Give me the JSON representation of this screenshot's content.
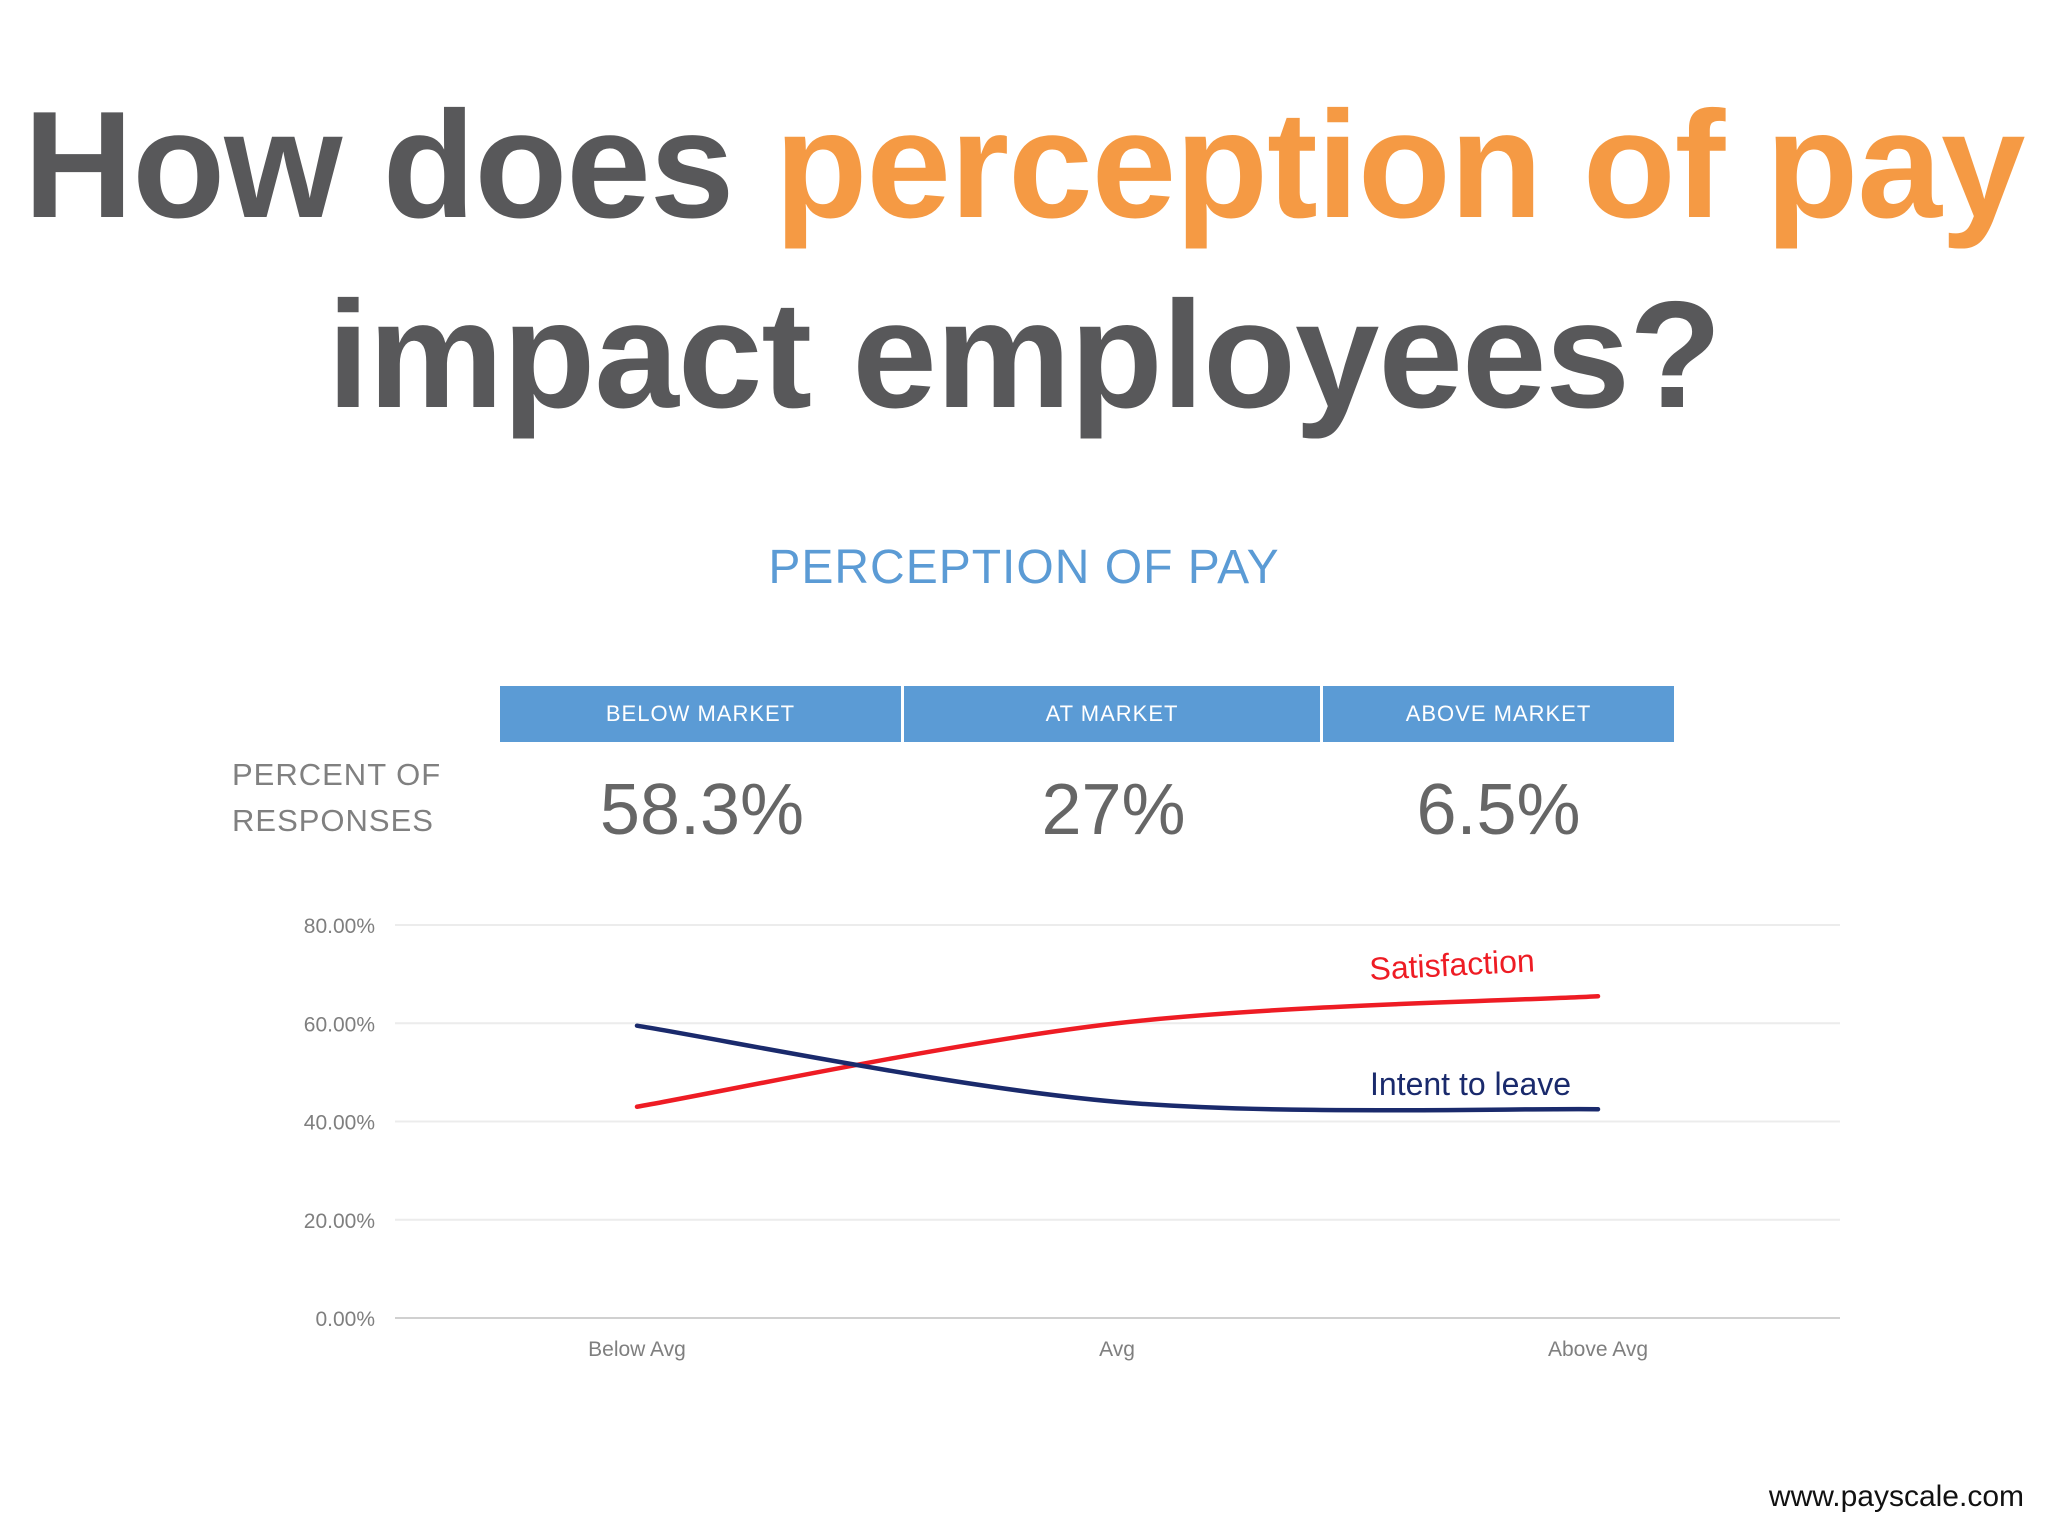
{
  "title": {
    "part1": "How does ",
    "highlight": "perception of pay",
    "part2": "impact employees?"
  },
  "colors": {
    "title_gray": "#58585a",
    "title_accent": "#f59a44",
    "header_blue": "#5b9bd5",
    "satisfaction": "#ee1c24",
    "intent_to_leave": "#1a2a6c"
  },
  "perception_table": {
    "title": "PERCEPTION OF PAY",
    "row_label_line1": "PERCENT OF",
    "row_label_line2": "RESPONSES",
    "columns": [
      {
        "header": "BELOW MARKET",
        "value": "58.3%"
      },
      {
        "header": "AT MARKET",
        "value": "27%"
      },
      {
        "header": "ABOVE MARKET",
        "value": "6.5%"
      }
    ]
  },
  "chart_data": {
    "type": "line",
    "categories": [
      "Below Avg",
      "Avg",
      "Above Avg"
    ],
    "series": [
      {
        "name": "Satisfaction",
        "values": [
          43.0,
          60.0,
          65.5
        ],
        "color": "#ee1c24"
      },
      {
        "name": "Intent to leave",
        "values": [
          59.5,
          44.0,
          42.5
        ],
        "color": "#1a2a6c"
      }
    ],
    "y_ticks": [
      "0.00%",
      "20.00%",
      "40.00%",
      "60.00%",
      "80.00%"
    ],
    "ylim": [
      0,
      80
    ],
    "grid": true,
    "legend": "inline labels near line ends"
  },
  "footer": {
    "url": "www.payscale.com"
  }
}
